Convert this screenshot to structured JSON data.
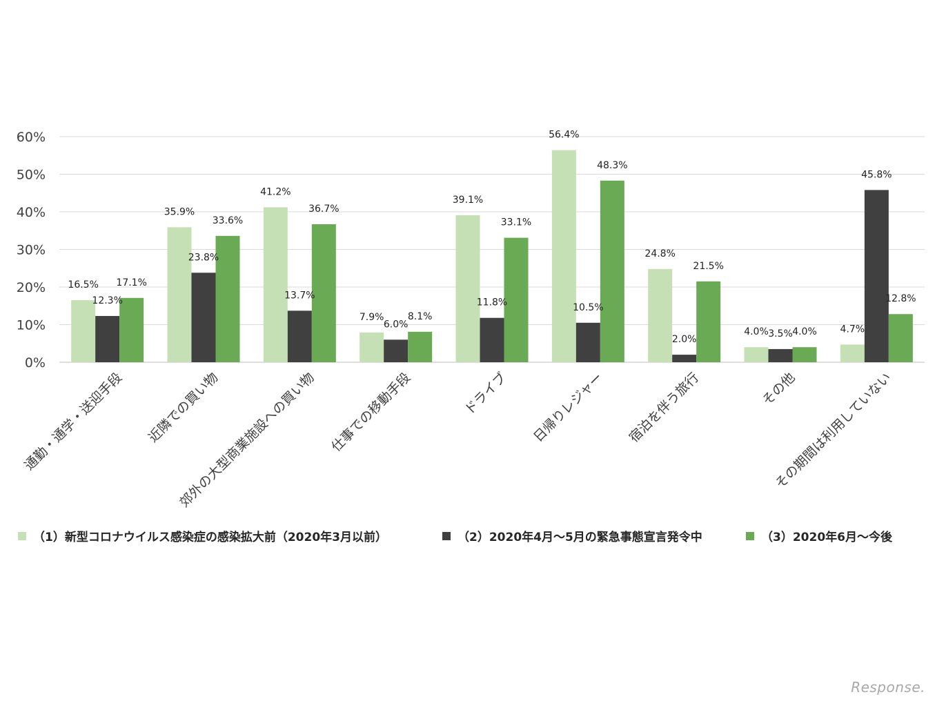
{
  "chart_data": {
    "type": "bar",
    "title": "",
    "xlabel": "",
    "ylabel": "",
    "ylim": [
      0,
      60
    ],
    "yticks": [
      0,
      10,
      20,
      30,
      40,
      50,
      60
    ],
    "ytick_labels": [
      "0%",
      "10%",
      "20%",
      "30%",
      "40%",
      "50%",
      "60%"
    ],
    "grid": true,
    "legend_position": "bottom",
    "categories": [
      "通勤・通学・送迎手段",
      "近隣での買い物",
      "郊外の大型商業施設への買い物",
      "仕事での移動手段",
      "ドライブ",
      "日帰りレジャー",
      "宿泊を伴う旅行",
      "その他",
      "その期間は利用していない"
    ],
    "series": [
      {
        "name": "（1）新型コロナウイルス感染症の感染拡大前（2020年3月以前）",
        "color": "#c5e0b4",
        "values": [
          16.5,
          35.9,
          41.2,
          7.9,
          39.1,
          56.4,
          24.8,
          4.0,
          4.7
        ],
        "labels": [
          "16.5%",
          "35.9%",
          "41.2%",
          "7.9%",
          "39.1%",
          "56.4%",
          "24.8%",
          "4.0%",
          "4.7%"
        ]
      },
      {
        "name": "（2）2020年4月～5月の緊急事態宣言発令中",
        "color": "#404040",
        "values": [
          12.3,
          23.8,
          13.7,
          6.0,
          11.8,
          10.5,
          2.0,
          3.5,
          45.8
        ],
        "labels": [
          "12.3%",
          "23.8%",
          "13.7%",
          "6.0%",
          "11.8%",
          "10.5%",
          "2.0%",
          "3.5%",
          "45.8%"
        ]
      },
      {
        "name": "（3）2020年6月～今後",
        "color": "#6aaa55",
        "values": [
          17.1,
          33.6,
          36.7,
          8.1,
          33.1,
          48.3,
          21.5,
          4.0,
          12.8
        ],
        "labels": [
          "17.1%",
          "33.6%",
          "36.7%",
          "8.1%",
          "33.1%",
          "48.3%",
          "21.5%",
          "4.0%",
          "12.8%"
        ]
      }
    ]
  },
  "watermark": {
    "text": "Response."
  }
}
